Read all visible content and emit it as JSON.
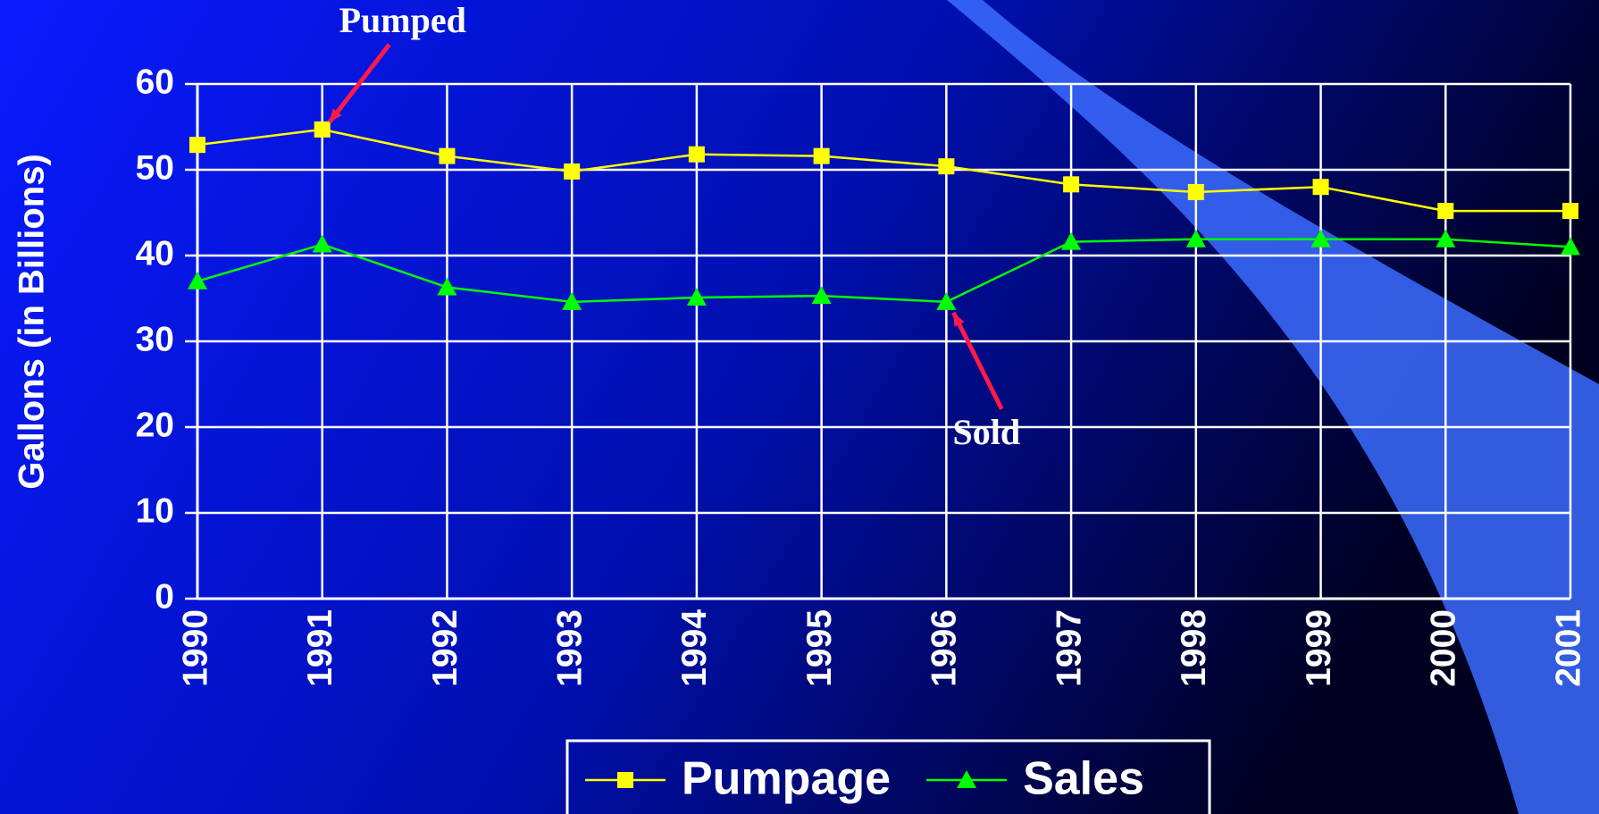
{
  "chart_data": {
    "type": "line",
    "y_label": "Gallons (in Billions)",
    "categories": [
      "1990",
      "1991",
      "1992",
      "1993",
      "1994",
      "1995",
      "1996",
      "1997",
      "1998",
      "1999",
      "2000",
      "2001"
    ],
    "series": [
      {
        "name": "Pumpage",
        "color": "#ffff00",
        "marker": "square",
        "values": [
          52.9,
          54.7,
          51.6,
          49.8,
          51.8,
          51.6,
          50.4,
          48.3,
          47.4,
          48.0,
          45.2,
          45.2
        ]
      },
      {
        "name": "Sales",
        "color": "#00ff00",
        "marker": "triangle",
        "values": [
          37.0,
          41.3,
          36.3,
          34.6,
          35.1,
          35.3,
          34.6,
          41.6,
          41.9,
          41.9,
          41.9,
          41.0
        ]
      }
    ],
    "ylim": [
      0,
      60
    ],
    "yticks": [
      0,
      10,
      20,
      30,
      40,
      50,
      60
    ],
    "grid": true,
    "annotations": [
      {
        "text": "Pumped",
        "series": 0,
        "index": 1
      },
      {
        "text": "Sold",
        "series": 1,
        "index": 6
      }
    ]
  }
}
